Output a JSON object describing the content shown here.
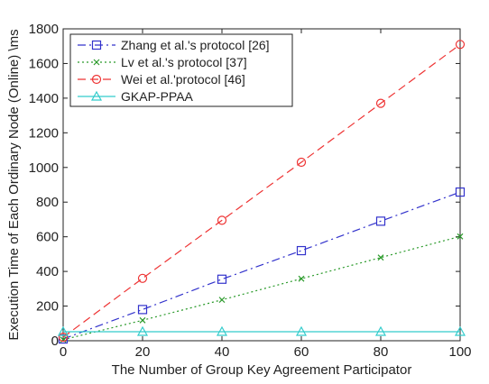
{
  "chart_data": {
    "type": "line",
    "title": "",
    "xlabel": "The Number of Group Key Agreement Participator",
    "ylabel": "Execution Time of Each Ordinary Node (Online) \\ms",
    "xlim": [
      0,
      100
    ],
    "ylim": [
      0,
      1800
    ],
    "xticks": [
      "0",
      "20",
      "40",
      "60",
      "80",
      "100"
    ],
    "yticks": [
      "0",
      "200",
      "400",
      "600",
      "800",
      "1000",
      "1200",
      "1400",
      "1600",
      "1800"
    ],
    "x": [
      0,
      20,
      40,
      60,
      80,
      100
    ],
    "grid": false,
    "legend_position": "top-left",
    "series": [
      {
        "name": "Zhang et al.'s protocol [26]",
        "color": "#3333cc",
        "marker": "square",
        "dash": "dash-dot",
        "values": [
          10,
          180,
          355,
          520,
          690,
          858
        ]
      },
      {
        "name": "Lv et al.'s protocol [37]",
        "color": "#2a9a2a",
        "marker": "x",
        "dash": "dotted",
        "values": [
          6,
          118,
          236,
          358,
          480,
          602
        ]
      },
      {
        "name": "Wei et al.'protocol [46]",
        "color": "#ee3333",
        "marker": "circle",
        "dash": "dashed",
        "values": [
          20,
          360,
          695,
          1030,
          1370,
          1710
        ]
      },
      {
        "name": "GKAP-PPAA",
        "color": "#33cccc",
        "marker": "triangle",
        "dash": "solid",
        "values": [
          52,
          52,
          52,
          52,
          52,
          52
        ]
      }
    ]
  }
}
